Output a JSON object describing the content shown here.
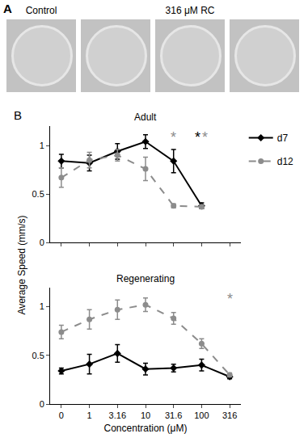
{
  "figure": {
    "panel_a": {
      "label": "A",
      "captions": [
        "Control",
        "316 μM RC"
      ]
    },
    "panel_b": {
      "label": "B",
      "y_label": "Average Speed (mm/s)"
    }
  },
  "chart_data": [
    {
      "type": "line",
      "title": "Adult",
      "categories": [
        "0",
        "1",
        "3.16",
        "10",
        "31.6",
        "100",
        "316"
      ],
      "series": [
        {
          "name": "d7",
          "color": "#000000",
          "marker": "diamond",
          "line_style": "solid",
          "values": [
            0.84,
            0.82,
            0.94,
            1.04,
            0.84,
            0.38,
            null
          ],
          "errors": [
            0.07,
            0.08,
            0.08,
            0.07,
            0.12,
            0.03,
            null
          ]
        },
        {
          "name": "d12",
          "color": "#8c8c8c",
          "marker": "circle",
          "line_style": "dash",
          "values": [
            0.67,
            0.85,
            0.9,
            0.76,
            0.38,
            0.37,
            null
          ],
          "errors": [
            0.1,
            0.08,
            0.06,
            0.12,
            0.02,
            0.02,
            null
          ]
        }
      ],
      "ylim": [
        0,
        1.2
      ],
      "yticks": [
        0,
        0.5,
        1
      ],
      "grid": false,
      "legend": "right",
      "tick_labels": "y",
      "annotations": [
        {
          "text": "*",
          "category": "31.6",
          "series": "d12"
        },
        {
          "text": "*",
          "category": "100",
          "series": "d7"
        },
        {
          "text": "*",
          "category": "100",
          "series": "d12"
        }
      ]
    },
    {
      "type": "line",
      "title": "Regenerating",
      "x_label": "Concentration (μM)",
      "categories": [
        "0",
        "1",
        "3.16",
        "10",
        "31.6",
        "100",
        "316"
      ],
      "series": [
        {
          "name": "d7",
          "color": "#000000",
          "marker": "diamond",
          "line_style": "solid",
          "values": [
            0.34,
            0.41,
            0.52,
            0.36,
            0.37,
            0.4,
            0.28
          ],
          "errors": [
            0.03,
            0.1,
            0.09,
            0.06,
            0.04,
            0.06,
            0.02
          ]
        },
        {
          "name": "d12",
          "color": "#8c8c8c",
          "marker": "circle",
          "line_style": "dash",
          "values": [
            0.74,
            0.87,
            0.97,
            1.02,
            0.88,
            0.62,
            0.3
          ],
          "errors": [
            0.07,
            0.1,
            0.1,
            0.07,
            0.06,
            0.05,
            0.02
          ]
        }
      ],
      "ylim": [
        0,
        1.2
      ],
      "yticks": [
        0,
        0.5,
        1
      ],
      "grid": false,
      "annotations": [
        {
          "text": "*",
          "category": "316",
          "series": "d12"
        }
      ]
    }
  ]
}
